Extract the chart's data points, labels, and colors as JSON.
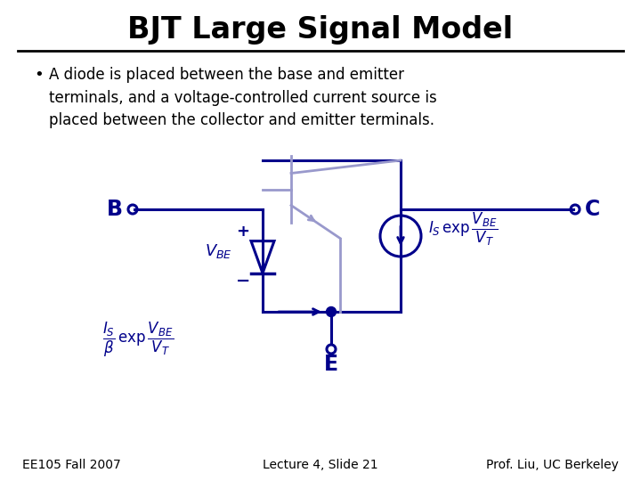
{
  "title": "BJT Large Signal Model",
  "bullet_text": "A diode is placed between the base and emitter\nterminals, and a voltage-controlled current source is\nplaced between the collector and emitter terminals.",
  "footer_left": "EE105 Fall 2007",
  "footer_center": "Lecture 4, Slide 21",
  "footer_right": "Prof. Liu, UC Berkeley",
  "dark_blue": "#00008B",
  "light_blue": "#9999CC",
  "bg_color": "#FFFFFF"
}
